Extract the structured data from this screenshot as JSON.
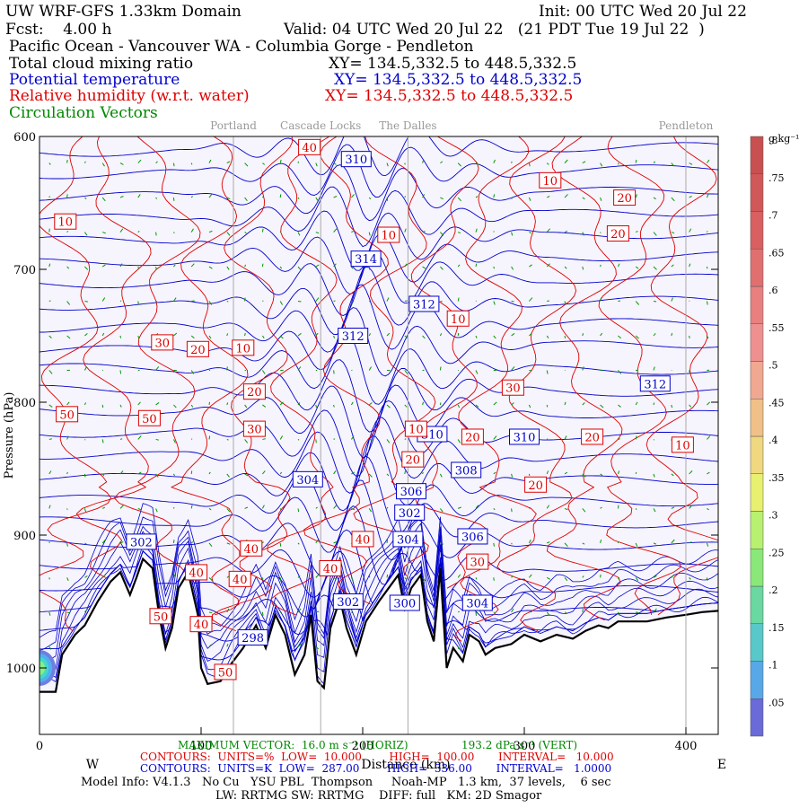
{
  "header": {
    "model": "UW WRF-GFS 1.33km Domain",
    "init": "Init: 00 UTC Wed 20 Jul 22",
    "fcst": "Fcst:    4.00 h",
    "valid": "Valid: 04 UTC Wed 20 Jul 22   (21 PDT Tue 19 Jul 22  )",
    "region": "Pacific Ocean - Vancouver WA - Columbia Gorge - Pendleton",
    "field1": "Total cloud mixing ratio",
    "field1_xy": "XY= 134.5,332.5 to 448.5,332.5",
    "field2": "Potential temperature",
    "field2_xy": "XY= 134.5,332.5 to 448.5,332.5",
    "field3": "Relative humidity (w.r.t. water)",
    "field3_xy": "XY= 134.5,332.5 to 448.5,332.5",
    "field4": "Circulation Vectors"
  },
  "chart_data": {
    "type": "contour",
    "xlabel": "Distance (km)",
    "ylabel": "Pressure (hPa)",
    "xlim": [
      0,
      420
    ],
    "ylim": [
      1050,
      600
    ],
    "x_ticks": [
      0,
      100,
      200,
      300,
      400
    ],
    "y_ticks": [
      600,
      700,
      800,
      900,
      1000
    ],
    "west_label": "W",
    "east_label": "E",
    "locations": [
      {
        "name": "Portland",
        "x": 120
      },
      {
        "name": "Cascade Locks",
        "x": 174
      },
      {
        "name": "The Dalles",
        "x": 228
      },
      {
        "name": "Pendleton",
        "x": 400
      }
    ],
    "theta_labels": [
      {
        "v": "310",
        "x": 196,
        "p": 617
      },
      {
        "v": "314",
        "x": 202,
        "p": 692
      },
      {
        "v": "312",
        "x": 238,
        "p": 726
      },
      {
        "v": "312",
        "x": 194,
        "p": 750
      },
      {
        "v": "312",
        "x": 381,
        "p": 786
      },
      {
        "v": "310",
        "x": 243,
        "p": 824
      },
      {
        "v": "310",
        "x": 300,
        "p": 826
      },
      {
        "v": "308",
        "x": 264,
        "p": 851
      },
      {
        "v": "304",
        "x": 166,
        "p": 858
      },
      {
        "v": "306",
        "x": 230,
        "p": 867
      },
      {
        "v": "302",
        "x": 229,
        "p": 883
      },
      {
        "v": "304",
        "x": 228,
        "p": 903
      },
      {
        "v": "306",
        "x": 268,
        "p": 901
      },
      {
        "v": "302",
        "x": 63,
        "p": 905
      },
      {
        "v": "302",
        "x": 191,
        "p": 950
      },
      {
        "v": "304",
        "x": 271,
        "p": 951
      },
      {
        "v": "300",
        "x": 226,
        "p": 951
      },
      {
        "v": "298",
        "x": 132,
        "p": 977
      }
    ],
    "rh_labels": [
      {
        "v": "40",
        "x": 167,
        "p": 608
      },
      {
        "v": "10",
        "x": 316,
        "p": 633
      },
      {
        "v": "20",
        "x": 362,
        "p": 646
      },
      {
        "v": "10",
        "x": 16,
        "p": 664
      },
      {
        "v": "10",
        "x": 216,
        "p": 674
      },
      {
        "v": "20",
        "x": 358,
        "p": 673
      },
      {
        "v": "10",
        "x": 259,
        "p": 737
      },
      {
        "v": "30",
        "x": 76,
        "p": 755
      },
      {
        "v": "20",
        "x": 98,
        "p": 760
      },
      {
        "v": "10",
        "x": 126,
        "p": 759
      },
      {
        "v": "30",
        "x": 293,
        "p": 789
      },
      {
        "v": "20",
        "x": 133,
        "p": 792
      },
      {
        "v": "50",
        "x": 17,
        "p": 809
      },
      {
        "v": "50",
        "x": 68,
        "p": 812
      },
      {
        "v": "30",
        "x": 133,
        "p": 820
      },
      {
        "v": "10",
        "x": 233,
        "p": 820
      },
      {
        "v": "20",
        "x": 268,
        "p": 826
      },
      {
        "v": "20",
        "x": 342,
        "p": 826
      },
      {
        "v": "10",
        "x": 398,
        "p": 832
      },
      {
        "v": "20",
        "x": 231,
        "p": 843
      },
      {
        "v": "20",
        "x": 307,
        "p": 862
      },
      {
        "v": "40",
        "x": 200,
        "p": 903
      },
      {
        "v": "40",
        "x": 131,
        "p": 910
      },
      {
        "v": "40",
        "x": 97,
        "p": 928
      },
      {
        "v": "40",
        "x": 124,
        "p": 933
      },
      {
        "v": "40",
        "x": 180,
        "p": 925
      },
      {
        "v": "30",
        "x": 271,
        "p": 920
      },
      {
        "v": "50",
        "x": 75,
        "p": 961
      },
      {
        "v": "40",
        "x": 100,
        "p": 967
      },
      {
        "v": "50",
        "x": 115,
        "p": 1003
      }
    ],
    "colorbar": {
      "unit": "g kg⁻¹",
      "ticks": [
        ".05",
        ".1",
        ".15",
        ".2",
        ".25",
        ".3",
        ".35",
        ".4",
        ".45",
        ".5",
        ".55",
        ".6",
        ".65",
        ".7",
        ".75",
        ".8"
      ]
    }
  },
  "footer": {
    "max_vector": "MAXIMUM VECTOR:  16.0 m s⁻¹ (HORIZ)",
    "max_vert": "193.2 dPa s⁻¹ (VERT)",
    "rh_contours": "CONTOURS:  UNITS=%  LOW=  10.000        HIGH=  100.00       INTERVAL=   10.000",
    "theta_contours": "CONTOURS:  UNITS=K  LOW=  287.00        HIGH=  336.00       INTERVAL=   1.0000",
    "model_info": "Model Info: V4.1.3   No Cu   YSU PBL  Thompson     Noah-MP   1.3 km,  37 levels,    6 sec",
    "physics": "LW: RRTMG SW: RRTMG    DIFF: full   KM: 2D Smagor"
  },
  "colors": {
    "theta": "#0000cc",
    "rh": "#dd0000",
    "vectors": "#009900",
    "plot_bg": "#f6f4fc",
    "terrain": "#000000"
  }
}
